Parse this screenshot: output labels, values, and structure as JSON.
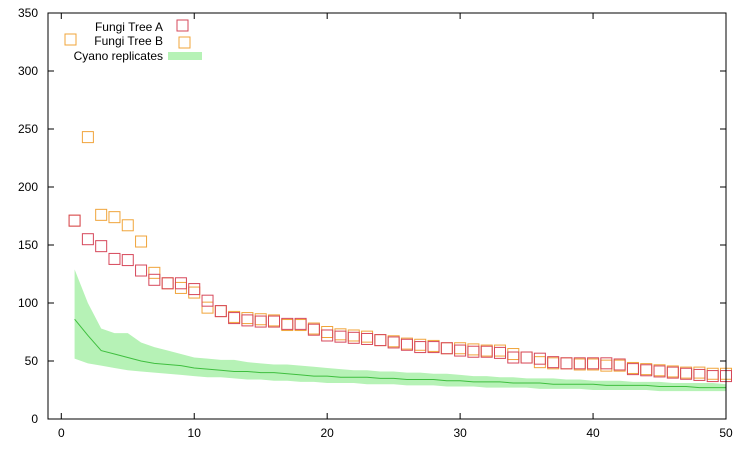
{
  "colors": {
    "fungi_a": "#d6475a",
    "fungi_b": "#f0a43a",
    "cyano_band": "#b6f2b6",
    "cyano_line": "#3fbf3f",
    "axis": "#000000"
  },
  "legend": {
    "fungi_a": "Fungi Tree A",
    "fungi_b": "Fungi Tree B",
    "cyano": "Cyano replicates"
  },
  "chart_data": {
    "type": "scatter",
    "title": "",
    "xlabel": "",
    "ylabel": "",
    "xlim": [
      -1,
      50
    ],
    "ylim": [
      0,
      350
    ],
    "x_ticks": [
      0,
      10,
      20,
      30,
      40,
      50
    ],
    "y_ticks": [
      0,
      50,
      100,
      150,
      200,
      250,
      300,
      350
    ],
    "grid": false,
    "legend_position": "top-left",
    "series": [
      {
        "name": "Fungi Tree A",
        "marker": "open-square",
        "x": [
          1,
          2,
          3,
          4,
          5,
          6,
          7,
          8,
          9,
          10,
          11,
          12,
          13,
          14,
          15,
          16,
          17,
          18,
          19,
          20,
          21,
          22,
          23,
          24,
          25,
          26,
          27,
          28,
          29,
          30,
          31,
          32,
          33,
          34,
          35,
          36,
          37,
          38,
          39,
          40,
          41,
          42,
          43,
          44,
          45,
          46,
          47,
          48,
          49,
          50
        ],
        "y": [
          171,
          155,
          149,
          138,
          137,
          128,
          120,
          117,
          117,
          112,
          102,
          93,
          87,
          85,
          84,
          84,
          82,
          82,
          77,
          72,
          71,
          70,
          69,
          68,
          66,
          64,
          62,
          62,
          61,
          59,
          58,
          58,
          57,
          53,
          53,
          52,
          49,
          48,
          48,
          48,
          48,
          47,
          43,
          42,
          41,
          40,
          39,
          38,
          37,
          37
        ]
      },
      {
        "name": "Fungi Tree B",
        "marker": "open-square",
        "x": [
          1,
          2,
          3,
          4,
          5,
          6,
          7,
          8,
          9,
          10,
          11,
          12,
          13,
          14,
          15,
          16,
          17,
          18,
          19,
          20,
          21,
          22,
          23,
          24,
          25,
          26,
          27,
          28,
          29,
          30,
          31,
          32,
          33,
          34,
          35,
          36,
          37,
          38,
          39,
          40,
          41,
          42,
          43,
          44,
          45,
          46,
          47,
          48,
          49,
          50
        ],
        "y": [
          171,
          243,
          176,
          174,
          167,
          153,
          126,
          117,
          113,
          109,
          96,
          93,
          88,
          87,
          86,
          85,
          81,
          81,
          78,
          75,
          73,
          72,
          71,
          68,
          67,
          65,
          64,
          63,
          61,
          61,
          60,
          59,
          59,
          56,
          53,
          49,
          48,
          48,
          47,
          47,
          46,
          46,
          44,
          43,
          42,
          41,
          40,
          40,
          39,
          39
        ]
      },
      {
        "name": "Cyano replicates",
        "type": "band-with-line",
        "x": [
          1,
          2,
          3,
          4,
          5,
          6,
          7,
          8,
          9,
          10,
          11,
          12,
          13,
          14,
          15,
          16,
          17,
          18,
          19,
          20,
          21,
          22,
          23,
          24,
          25,
          26,
          27,
          28,
          29,
          30,
          31,
          32,
          33,
          34,
          35,
          36,
          37,
          38,
          39,
          40,
          41,
          42,
          43,
          44,
          45,
          46,
          47,
          48,
          49,
          50
        ],
        "mean": [
          86,
          72,
          59,
          56,
          53,
          50,
          48,
          47,
          46,
          44,
          43,
          42,
          41,
          41,
          40,
          40,
          39,
          38,
          37,
          37,
          36,
          36,
          36,
          35,
          35,
          34,
          34,
          34,
          33,
          33,
          32,
          32,
          32,
          31,
          31,
          31,
          30,
          30,
          30,
          30,
          29,
          29,
          29,
          29,
          28,
          28,
          28,
          27,
          27,
          27
        ],
        "lower": [
          52,
          48,
          46,
          44,
          42,
          41,
          40,
          39,
          38,
          37,
          36,
          36,
          35,
          34,
          34,
          33,
          33,
          32,
          32,
          31,
          31,
          31,
          30,
          30,
          30,
          29,
          29,
          29,
          28,
          28,
          28,
          27,
          27,
          27,
          27,
          26,
          26,
          26,
          26,
          25,
          25,
          25,
          25,
          25,
          24,
          24,
          24,
          24,
          24,
          24
        ],
        "upper": [
          129,
          100,
          78,
          74,
          74,
          66,
          62,
          59,
          56,
          53,
          52,
          51,
          51,
          49,
          48,
          47,
          47,
          46,
          45,
          44,
          43,
          42,
          42,
          41,
          41,
          40,
          40,
          39,
          39,
          38,
          37,
          37,
          36,
          36,
          35,
          35,
          35,
          34,
          34,
          33,
          33,
          33,
          32,
          32,
          32,
          31,
          31,
          31,
          31,
          30
        ]
      }
    ]
  }
}
